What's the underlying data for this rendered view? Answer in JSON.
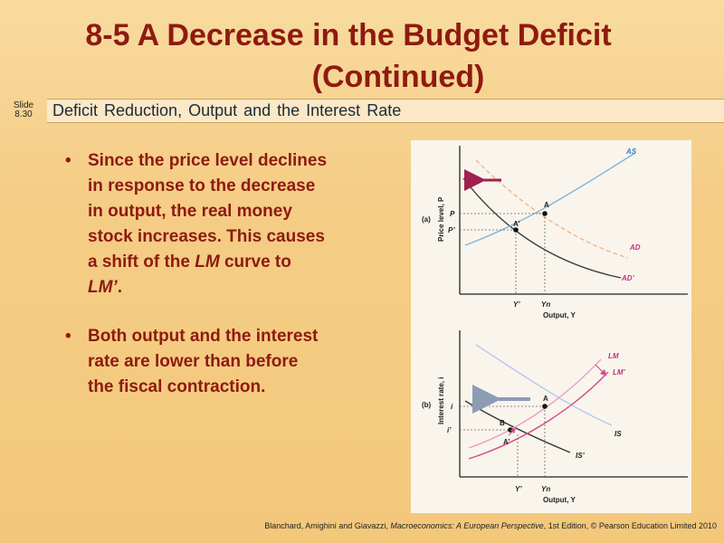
{
  "title": {
    "line1": "8-5  A Decrease in the Budget Deficit",
    "line2": "(Continued)"
  },
  "slide_tag": {
    "word": "Slide",
    "number": "8.30"
  },
  "subtitle": "Deficit Reduction, Output and the Interest Rate",
  "bullets": [
    {
      "text": "Since the price level declines in response to the decrease in output, the real money stock increases. This causes a shift of the ",
      "em1": "LM",
      "mid": " curve to ",
      "em2": "LM’",
      "end": "."
    },
    {
      "text": "Both output and the interest rate are lower than before the fiscal contraction."
    }
  ],
  "credit": {
    "before": "Blanchard, Amighini and Giavazzi, ",
    "italic": "Macroeconomics: A European Perspective",
    "after": ", 1st Edition, © Pearson Education Limited 2010"
  },
  "diagram_a": {
    "panel_label": "(a)",
    "y_axis_label": "Price level, P",
    "x_axis_label": "Output, Y",
    "curves": {
      "as": "AS",
      "ad": "AD",
      "ad_new": "AD’"
    },
    "points": {
      "a": "A",
      "a_new": "A’"
    },
    "y_ticks": {
      "p": "P",
      "p_new": "P’"
    },
    "x_ticks": {
      "y_new": "Y’",
      "yn": "Yn"
    }
  },
  "diagram_b": {
    "panel_label": "(b)",
    "y_axis_label": "Interest rate, i",
    "x_axis_label": "Output, Y",
    "curves": {
      "lm": "LM",
      "lm_new": "LM’",
      "is": "IS",
      "is_new": "IS’"
    },
    "points": {
      "a": "A",
      "a_new": "A’",
      "b": "B"
    },
    "y_ticks": {
      "i": "i",
      "i_new": "i’"
    },
    "x_ticks": {
      "y_new": "Y’",
      "yn": "Yn"
    }
  },
  "colors": {
    "title": "#8e1a10",
    "bullet_text": "#8e1a10",
    "as_curve": "#7fb3dc",
    "ad_curve": "#f5b48a",
    "ad_new_curve": "#3a3a3a",
    "lm_curve": "#ef9ec9",
    "lm_new_curve": "#d44a8e",
    "is_curve": "#b9c9ea",
    "is_new_curve": "#3a3a3a",
    "arrow_a": "#a02050",
    "arrow_b": "#8c9cb5",
    "label_blue": "#3b78c9",
    "label_pink": "#c0337e",
    "label_dark": "#222222"
  }
}
